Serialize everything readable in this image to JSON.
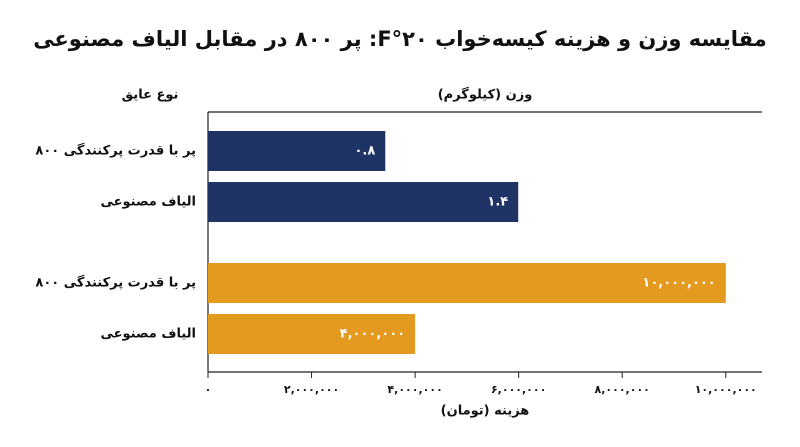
{
  "title": "مقایسه وزن و هزینه کیسه‌خواب ۲۰°F: پر ۸۰۰ در مقابل الیاف مصنوعی",
  "chart_data": [
    {
      "type": "bar",
      "ylabel": "نوع عایق",
      "xlabel": "وزن (کیلوگرم)",
      "categories": [
        "پر با قدرت پرکنندگی ۸۰۰",
        "الیاف مصنوعی"
      ],
      "values": [
        0.8,
        1.4
      ],
      "value_labels": [
        "۰.۸",
        "۱.۴"
      ],
      "color": "#1f3464",
      "xlim": [
        0,
        2.5
      ]
    },
    {
      "type": "bar",
      "xlabel": "هزینه (تومان)",
      "categories": [
        "پر با قدرت پرکنندگی ۸۰۰",
        "الیاف مصنوعی"
      ],
      "values": [
        10000000,
        4000000
      ],
      "value_labels": [
        "۱۰,۰۰۰,۰۰۰",
        "۴,۰۰۰,۰۰۰"
      ],
      "color": "#e39a1f",
      "xlim": [
        0,
        10700000
      ],
      "xticks": [
        {
          "value": 0,
          "label": "۰"
        },
        {
          "value": 2000000,
          "label": "۲,۰۰۰,۰۰۰"
        },
        {
          "value": 4000000,
          "label": "۴,۰۰۰,۰۰۰"
        },
        {
          "value": 6000000,
          "label": "۶,۰۰۰,۰۰۰"
        },
        {
          "value": 8000000,
          "label": "۸,۰۰۰,۰۰۰"
        },
        {
          "value": 10000000,
          "label": "۱۰,۰۰۰,۰۰۰"
        }
      ]
    }
  ]
}
